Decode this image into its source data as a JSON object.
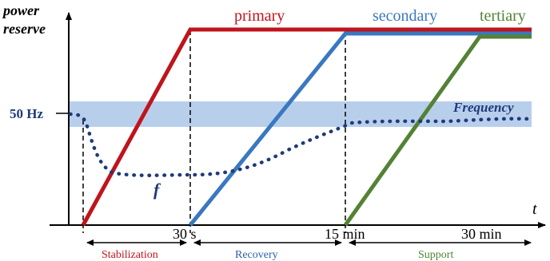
{
  "axes": {
    "y_label_line1": "power",
    "y_label_line2": "reserve",
    "x_label": "t",
    "y_tick": "50 Hz"
  },
  "reserves": {
    "primary": {
      "label": "primary",
      "color": "#c0141c"
    },
    "secondary": {
      "label": "secondary",
      "color": "#3a78c0"
    },
    "tertiary": {
      "label": "tertiary",
      "color": "#548235"
    }
  },
  "frequency": {
    "band_label": "Frequency",
    "curve_label": "f",
    "band_color": "#b8cfec",
    "dot_color": "#1f3a7a"
  },
  "time_marks": [
    "30 s",
    "15 min",
    "30 min"
  ],
  "phases": [
    {
      "label": "Stabilization",
      "color": "#c0141c"
    },
    {
      "label": "Recovery",
      "color": "#2e5fa8"
    },
    {
      "label": "Support",
      "color": "#548235"
    }
  ]
}
